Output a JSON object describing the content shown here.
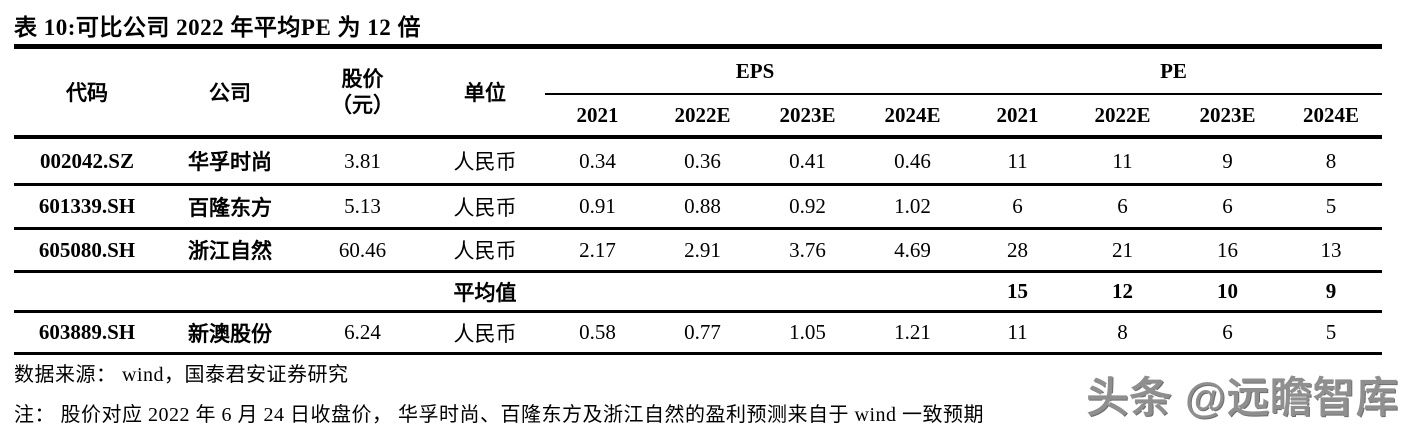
{
  "title": "表 10:可比公司 2022 年平均PE 为 12 倍",
  "table": {
    "columns": {
      "code": "代码",
      "company": "公司",
      "price_line1": "股价",
      "price_line2": "（元）",
      "unit": "单位"
    },
    "groups": {
      "eps": "EPS",
      "pe": "PE"
    },
    "years": [
      "2021",
      "2022E",
      "2023E",
      "2024E"
    ],
    "rows": [
      {
        "code": "002042.SZ",
        "company": "华孚时尚",
        "price": "3.81",
        "unit": "人民币",
        "eps": [
          "0.34",
          "0.36",
          "0.41",
          "0.46"
        ],
        "pe": [
          "11",
          "11",
          "9",
          "8"
        ]
      },
      {
        "code": "601339.SH",
        "company": "百隆东方",
        "price": "5.13",
        "unit": "人民币",
        "eps": [
          "0.91",
          "0.88",
          "0.92",
          "1.02"
        ],
        "pe": [
          "6",
          "6",
          "6",
          "5"
        ]
      },
      {
        "code": "605080.SH",
        "company": "浙江自然",
        "price": "60.46",
        "unit": "人民币",
        "eps": [
          "2.17",
          "2.91",
          "3.76",
          "4.69"
        ],
        "pe": [
          "28",
          "21",
          "16",
          "13"
        ]
      },
      {
        "code": "",
        "company": "",
        "price": "",
        "unit": "平均值",
        "eps": [
          "",
          "",
          "",
          ""
        ],
        "pe": [
          "15",
          "12",
          "10",
          "9"
        ]
      },
      {
        "code": "603889.SH",
        "company": "新澳股份",
        "price": "6.24",
        "unit": "人民币",
        "eps": [
          "0.58",
          "0.77",
          "1.05",
          "1.21"
        ],
        "pe": [
          "11",
          "8",
          "6",
          "5"
        ]
      }
    ]
  },
  "footer": {
    "source": "数据来源： wind，国泰君安证券研究",
    "note": "注： 股价对应 2022 年 6 月 24 日收盘价， 华孚时尚、百隆东方及浙江自然的盈利预测来自于 wind 一致预期"
  },
  "watermark": "头条 @远瞻智库"
}
